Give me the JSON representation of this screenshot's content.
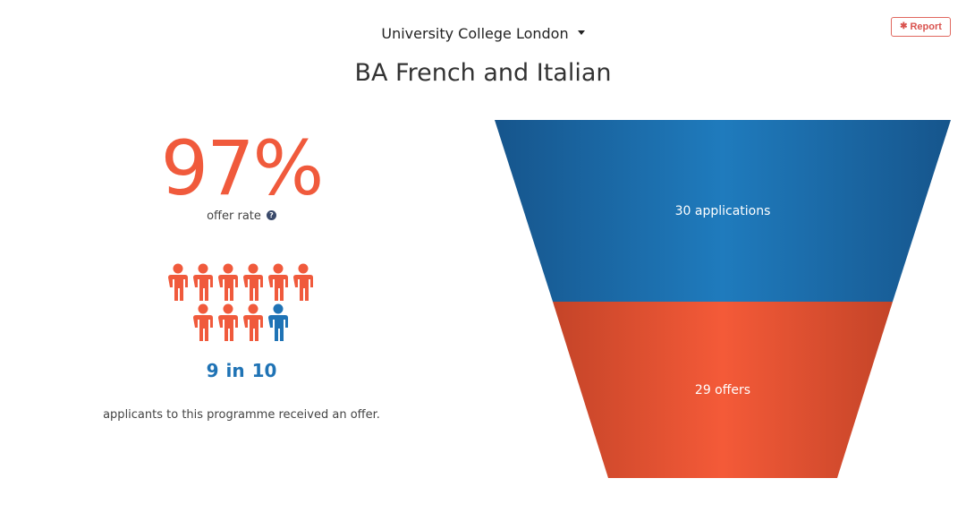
{
  "report_button": {
    "label": "Report",
    "icon": "bug-icon"
  },
  "university_select": {
    "selected": "University College London"
  },
  "programme_title": "BA French and Italian",
  "offer_rate": {
    "value": "97%",
    "label": "offer rate",
    "help_icon": "question-circle-icon"
  },
  "pictogram": {
    "total": 10,
    "highlighted": 9,
    "highlight_color": "#f05a3c",
    "other_color": "#1f73b5"
  },
  "ratio": {
    "numerator": "9",
    "word": "in",
    "denominator": "10"
  },
  "caption": "applicants to this programme received an offer.",
  "funnel": {
    "stages": [
      {
        "label": "30 applications",
        "value": 30,
        "color": "#1f73b5"
      },
      {
        "label": "29 offers",
        "value": 29,
        "color": "#f05a3c"
      }
    ]
  }
}
